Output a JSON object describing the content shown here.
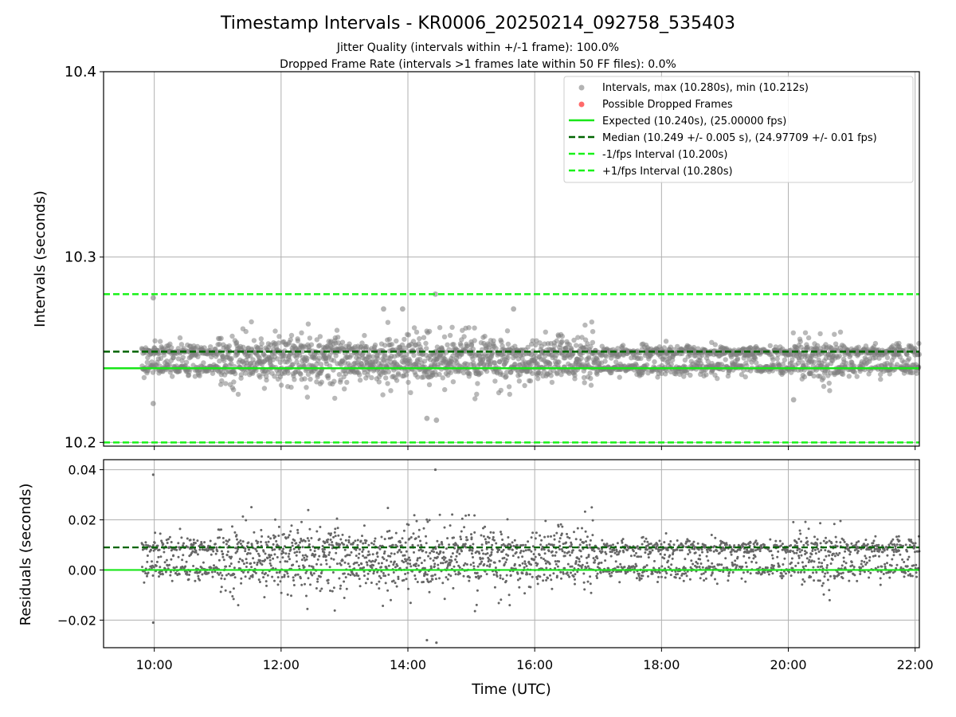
{
  "title": "Timestamp Intervals - KR0006_20250214_092758_535403",
  "subtitle_1": "Jitter Quality (intervals within +/-1 frame): 100.0%",
  "subtitle_2": "Dropped Frame Rate (intervals >1 frames late within 50 FF files): 0.0%",
  "colors": {
    "points": "#808080",
    "dropped": "#ff5050",
    "expected": "#19e619",
    "median": "#006400",
    "interval_lines": "#19f219"
  },
  "chart_data": [
    {
      "type": "scatter",
      "ylabel": "Intervals (seconds)",
      "ylim": [
        10.198,
        10.4
      ],
      "xlim": [
        "09:12",
        "22:04"
      ],
      "ytick_labels": [
        "10.2",
        "10.3",
        "10.4"
      ],
      "yticks": [
        10.2,
        10.3,
        10.4
      ],
      "grid": true,
      "legend_position": "top-right",
      "legend": [
        "Intervals, max (10.280s), min (10.212s)",
        "Possible Dropped Frames",
        "Expected (10.240s), (25.00000 fps)",
        "Median (10.249 +/- 0.005 s), (24.97709 +/- 0.01 fps)",
        "-1/fps Interval (10.200s)",
        "+1/fps Interval (10.280s)"
      ],
      "reference_lines": {
        "expected": 10.24,
        "median": 10.249,
        "minus_1fps": 10.2,
        "plus_1fps": 10.28
      },
      "time_range": [
        "09:48",
        "22:04"
      ],
      "max_interval": 10.28,
      "min_interval": 10.212,
      "outliers": [
        {
          "x": "09:59",
          "y": 10.278
        },
        {
          "x": "09:59",
          "y": 10.221
        },
        {
          "x": "14:26",
          "y": 10.28
        },
        {
          "x": "14:18",
          "y": 10.213
        },
        {
          "x": "14:27",
          "y": 10.212
        },
        {
          "x": "13:55",
          "y": 10.272
        },
        {
          "x": "13:37",
          "y": 10.272
        },
        {
          "x": "15:40",
          "y": 10.272
        },
        {
          "x": "20:05",
          "y": 10.223
        }
      ]
    },
    {
      "type": "scatter",
      "ylabel": "Residuals (seconds)",
      "xlabel": "Time (UTC)",
      "ylim": [
        -0.031,
        0.044
      ],
      "xlim": [
        "09:12",
        "22:04"
      ],
      "ytick_labels": [
        "0.04",
        "0.02",
        "0.00",
        "−0.02"
      ],
      "yticks": [
        0.04,
        0.02,
        0.0,
        -0.02
      ],
      "xtick_labels": [
        "10:00",
        "12:00",
        "14:00",
        "16:00",
        "18:00",
        "20:00",
        "22:00"
      ],
      "xticks": [
        "10:00",
        "12:00",
        "14:00",
        "16:00",
        "18:00",
        "20:00",
        "22:00"
      ],
      "grid": true,
      "reference_lines": {
        "zero": 0.0,
        "median_offset": 0.009
      },
      "outliers": [
        {
          "x": "09:59",
          "y": 0.038
        },
        {
          "x": "09:59",
          "y": -0.021
        },
        {
          "x": "14:26",
          "y": 0.04
        },
        {
          "x": "14:18",
          "y": -0.028
        },
        {
          "x": "14:27",
          "y": -0.029
        }
      ]
    }
  ]
}
